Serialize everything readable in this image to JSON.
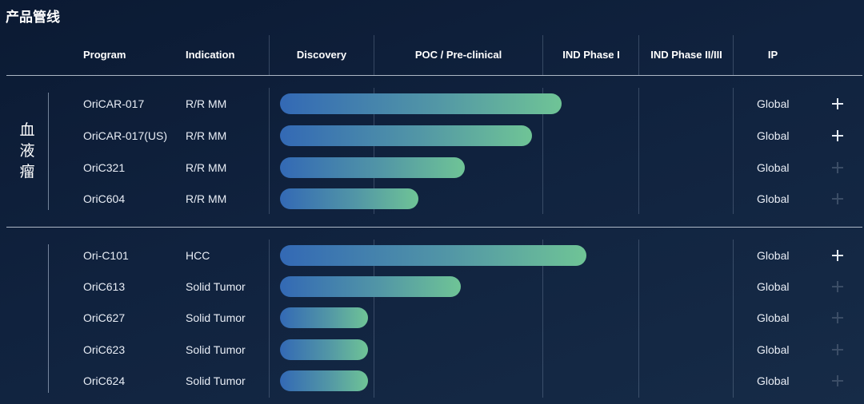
{
  "page_title": "产品管线",
  "headers": {
    "program": "Program",
    "indication": "Indication",
    "discovery": "Discovery",
    "poc": "POC / Pre-clinical",
    "ind1": "IND Phase I",
    "ind23": "IND Phase II/III",
    "ip": "IP"
  },
  "groups": [
    {
      "label": "血液瘤",
      "rows": [
        {
          "program": "OriCAR-017",
          "indication": "R/R MM",
          "ip": "Global",
          "progress": 0.67,
          "expandable": true
        },
        {
          "program": "OriCAR-017(US)",
          "indication": "R/R MM",
          "ip": "Global",
          "progress": 0.6,
          "expandable": true
        },
        {
          "program": "OriC321",
          "indication": "R/R MM",
          "ip": "Global",
          "progress": 0.44,
          "expandable": false
        },
        {
          "program": "OriC604",
          "indication": "R/R MM",
          "ip": "Global",
          "progress": 0.33,
          "expandable": false
        }
      ]
    },
    {
      "label": "",
      "rows": [
        {
          "program": "Ori-C101",
          "indication": "HCC",
          "ip": "Global",
          "progress": 0.73,
          "expandable": true
        },
        {
          "program": "OriC613",
          "indication": "Solid Tumor",
          "ip": "Global",
          "progress": 0.43,
          "expandable": false
        },
        {
          "program": "OriC627",
          "indication": "Solid Tumor",
          "ip": "Global",
          "progress": 0.21,
          "expandable": false
        },
        {
          "program": "OriC623",
          "indication": "Solid Tumor",
          "ip": "Global",
          "progress": 0.21,
          "expandable": false
        },
        {
          "program": "OriC624",
          "indication": "Solid Tumor",
          "ip": "Global",
          "progress": 0.21,
          "expandable": false
        }
      ]
    }
  ],
  "colors": {
    "bar_start": "#3369b5",
    "bar_end": "#6fc496",
    "background": "#0f213c"
  },
  "icons": {
    "expand": "plus-icon"
  }
}
